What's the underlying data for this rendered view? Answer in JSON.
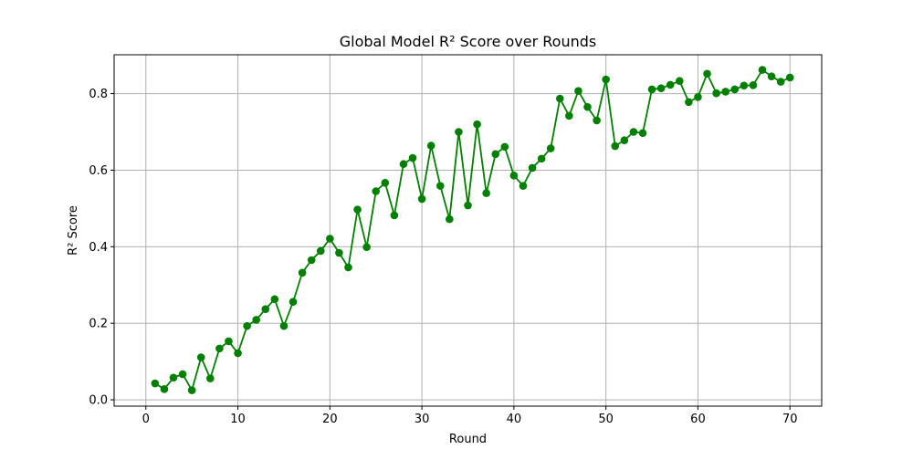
{
  "chart_data": {
    "type": "line",
    "title": "Global Model R² Score over Rounds",
    "xlabel": "Round",
    "ylabel": "R² Score",
    "xlim": [
      -3.45,
      73.45
    ],
    "ylim": [
      -0.0165,
      0.9015
    ],
    "xticks": [
      0,
      10,
      20,
      30,
      40,
      50,
      60,
      70
    ],
    "yticks": [
      0.0,
      0.2,
      0.4,
      0.6,
      0.8
    ],
    "xtick_labels": [
      "0",
      "10",
      "20",
      "30",
      "40",
      "50",
      "60",
      "70"
    ],
    "ytick_labels": [
      "0.0",
      "0.2",
      "0.4",
      "0.6",
      "0.8"
    ],
    "grid": true,
    "legend": "none",
    "series": [
      {
        "color": "#008000",
        "marker": "circle",
        "x": [
          1,
          2,
          3,
          4,
          5,
          6,
          7,
          8,
          9,
          10,
          11,
          12,
          13,
          14,
          15,
          16,
          17,
          18,
          19,
          20,
          21,
          22,
          23,
          24,
          25,
          26,
          27,
          28,
          29,
          30,
          31,
          32,
          33,
          34,
          35,
          36,
          37,
          38,
          39,
          40,
          41,
          42,
          43,
          44,
          45,
          46,
          47,
          48,
          49,
          50,
          51,
          52,
          53,
          54,
          55,
          56,
          57,
          58,
          59,
          60,
          61,
          62,
          63,
          64,
          65,
          66,
          67,
          68,
          69,
          70
        ],
        "y": [
          0.043,
          0.028,
          0.058,
          0.067,
          0.025,
          0.111,
          0.056,
          0.134,
          0.153,
          0.122,
          0.193,
          0.209,
          0.237,
          0.263,
          0.193,
          0.256,
          0.332,
          0.365,
          0.389,
          0.421,
          0.384,
          0.346,
          0.497,
          0.399,
          0.545,
          0.567,
          0.482,
          0.616,
          0.632,
          0.525,
          0.664,
          0.559,
          0.472,
          0.7,
          0.508,
          0.72,
          0.54,
          0.642,
          0.661,
          0.586,
          0.559,
          0.606,
          0.63,
          0.657,
          0.787,
          0.742,
          0.807,
          0.765,
          0.73,
          0.837,
          0.663,
          0.678,
          0.7,
          0.697,
          0.811,
          0.814,
          0.823,
          0.833,
          0.778,
          0.791,
          0.852,
          0.801,
          0.805,
          0.811,
          0.821,
          0.822,
          0.862,
          0.845,
          0.831,
          0.842
        ]
      }
    ]
  }
}
